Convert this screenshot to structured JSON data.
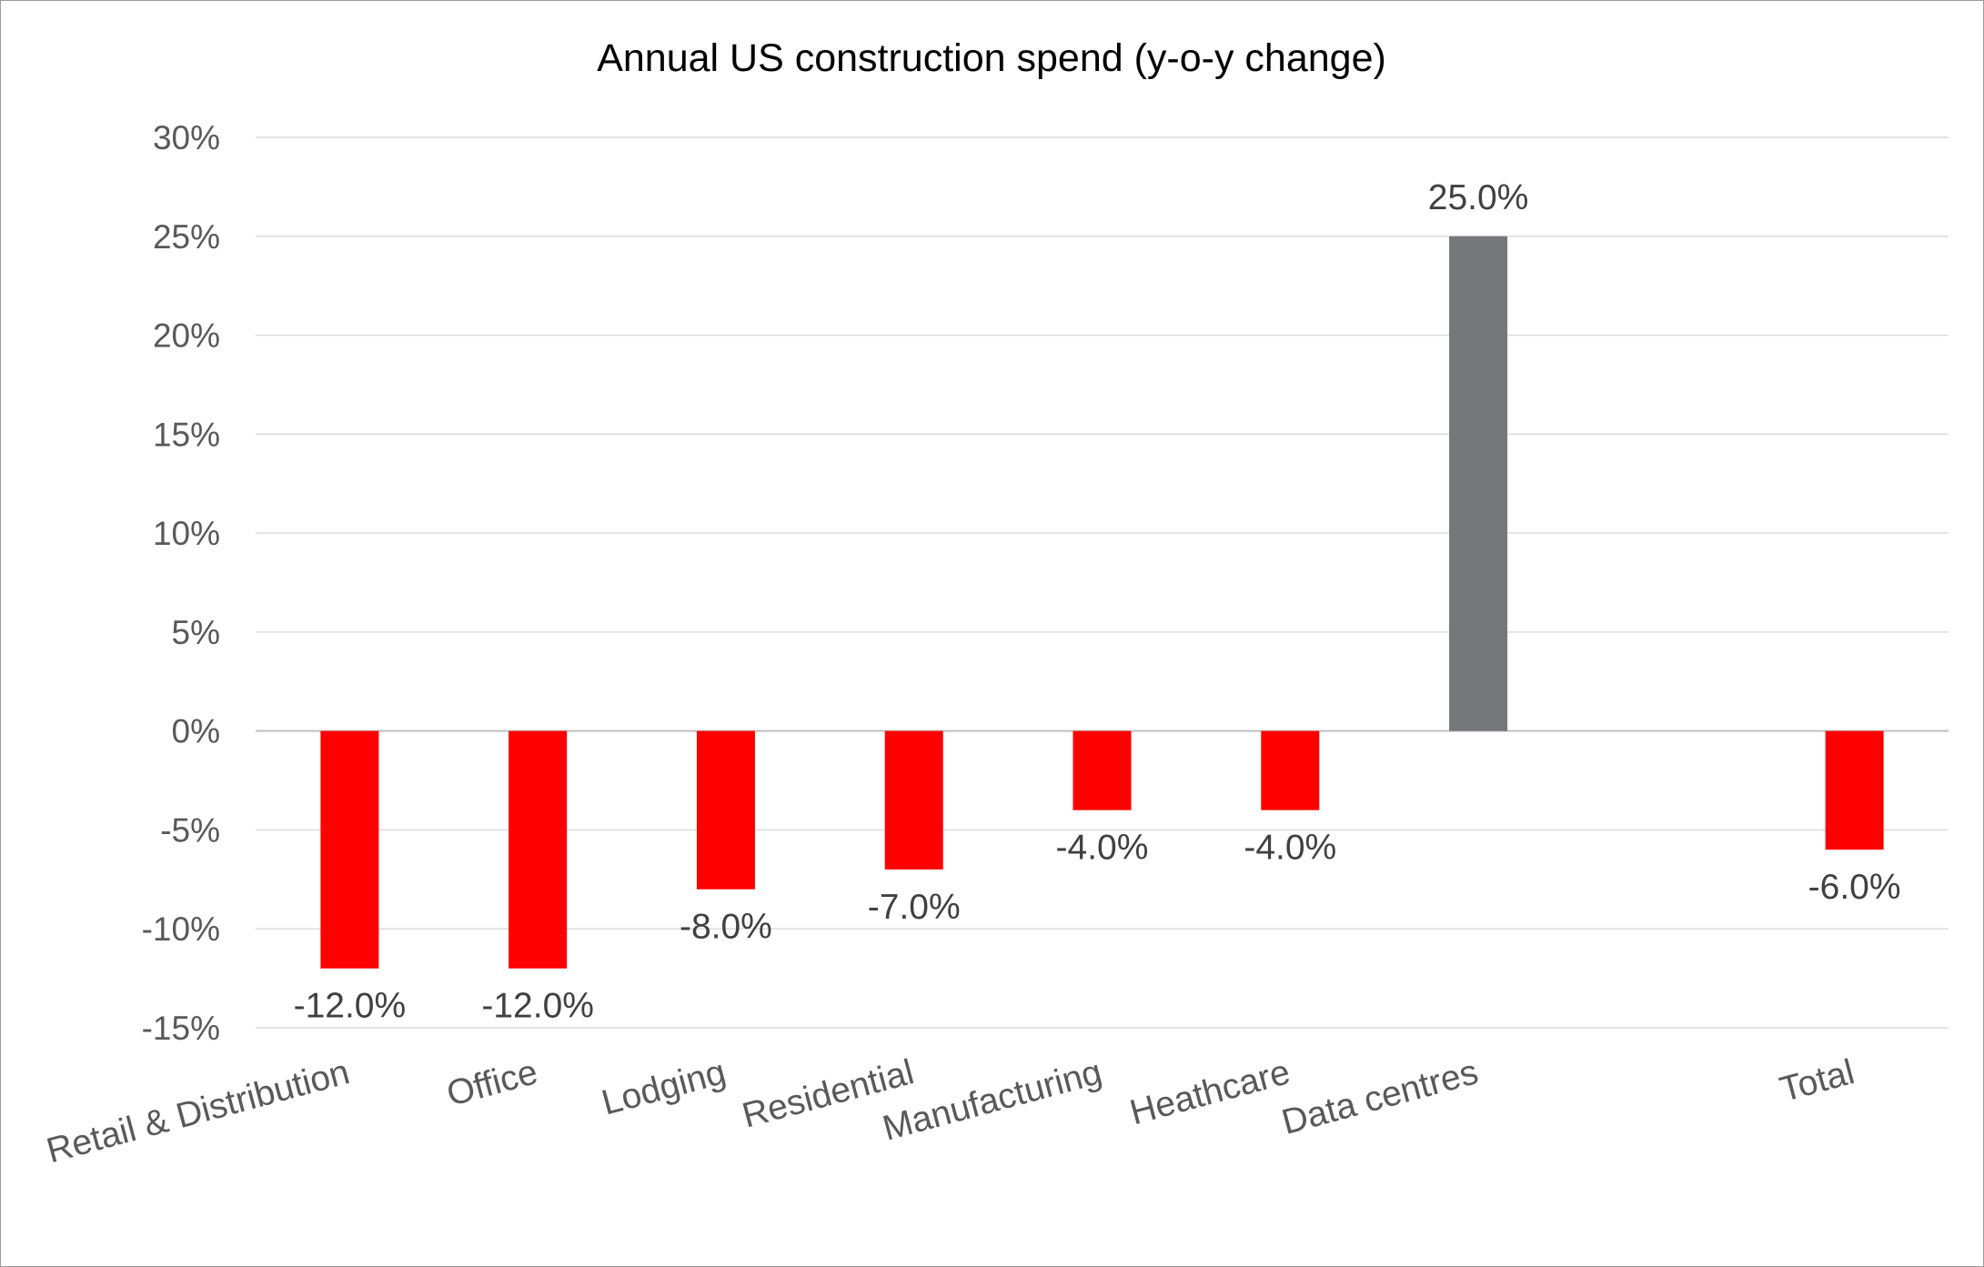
{
  "chart_data": {
    "type": "bar",
    "title": "Annual US construction spend (y-o-y change)",
    "xlabel": "",
    "ylabel": "",
    "categories": [
      "Retail & Distribution",
      "Office",
      "Lodging",
      "Residential",
      "Manufacturing",
      "Heathcare",
      "Data centres",
      "",
      "Total"
    ],
    "values": [
      -12.0,
      -12.0,
      -8.0,
      -7.0,
      -4.0,
      -4.0,
      25.0,
      null,
      -6.0
    ],
    "data_labels": [
      "-12.0%",
      "-12.0%",
      "-8.0%",
      "-7.0%",
      "-4.0%",
      "-4.0%",
      "25.0%",
      "",
      "-6.0%"
    ],
    "bar_colors": [
      "#ff0000",
      "#ff0000",
      "#ff0000",
      "#ff0000",
      "#ff0000",
      "#ff0000",
      "#76777b",
      "#ff0000",
      "#ff0000"
    ],
    "ylim": [
      -15,
      30
    ],
    "yticks": [
      30,
      25,
      20,
      15,
      10,
      5,
      0,
      -5,
      -10,
      -15
    ],
    "ytick_labels": [
      "30%",
      "25%",
      "20%",
      "15%",
      "10%",
      "5%",
      "0%",
      "-5%",
      "-10%",
      "-15%"
    ],
    "grid": true,
    "legend": "none",
    "colors": {
      "negative": "#ff0000",
      "highlight": "#76777b",
      "gridline": "#d9d9d9",
      "axis_text": "#595959",
      "label_text": "#404040"
    }
  }
}
